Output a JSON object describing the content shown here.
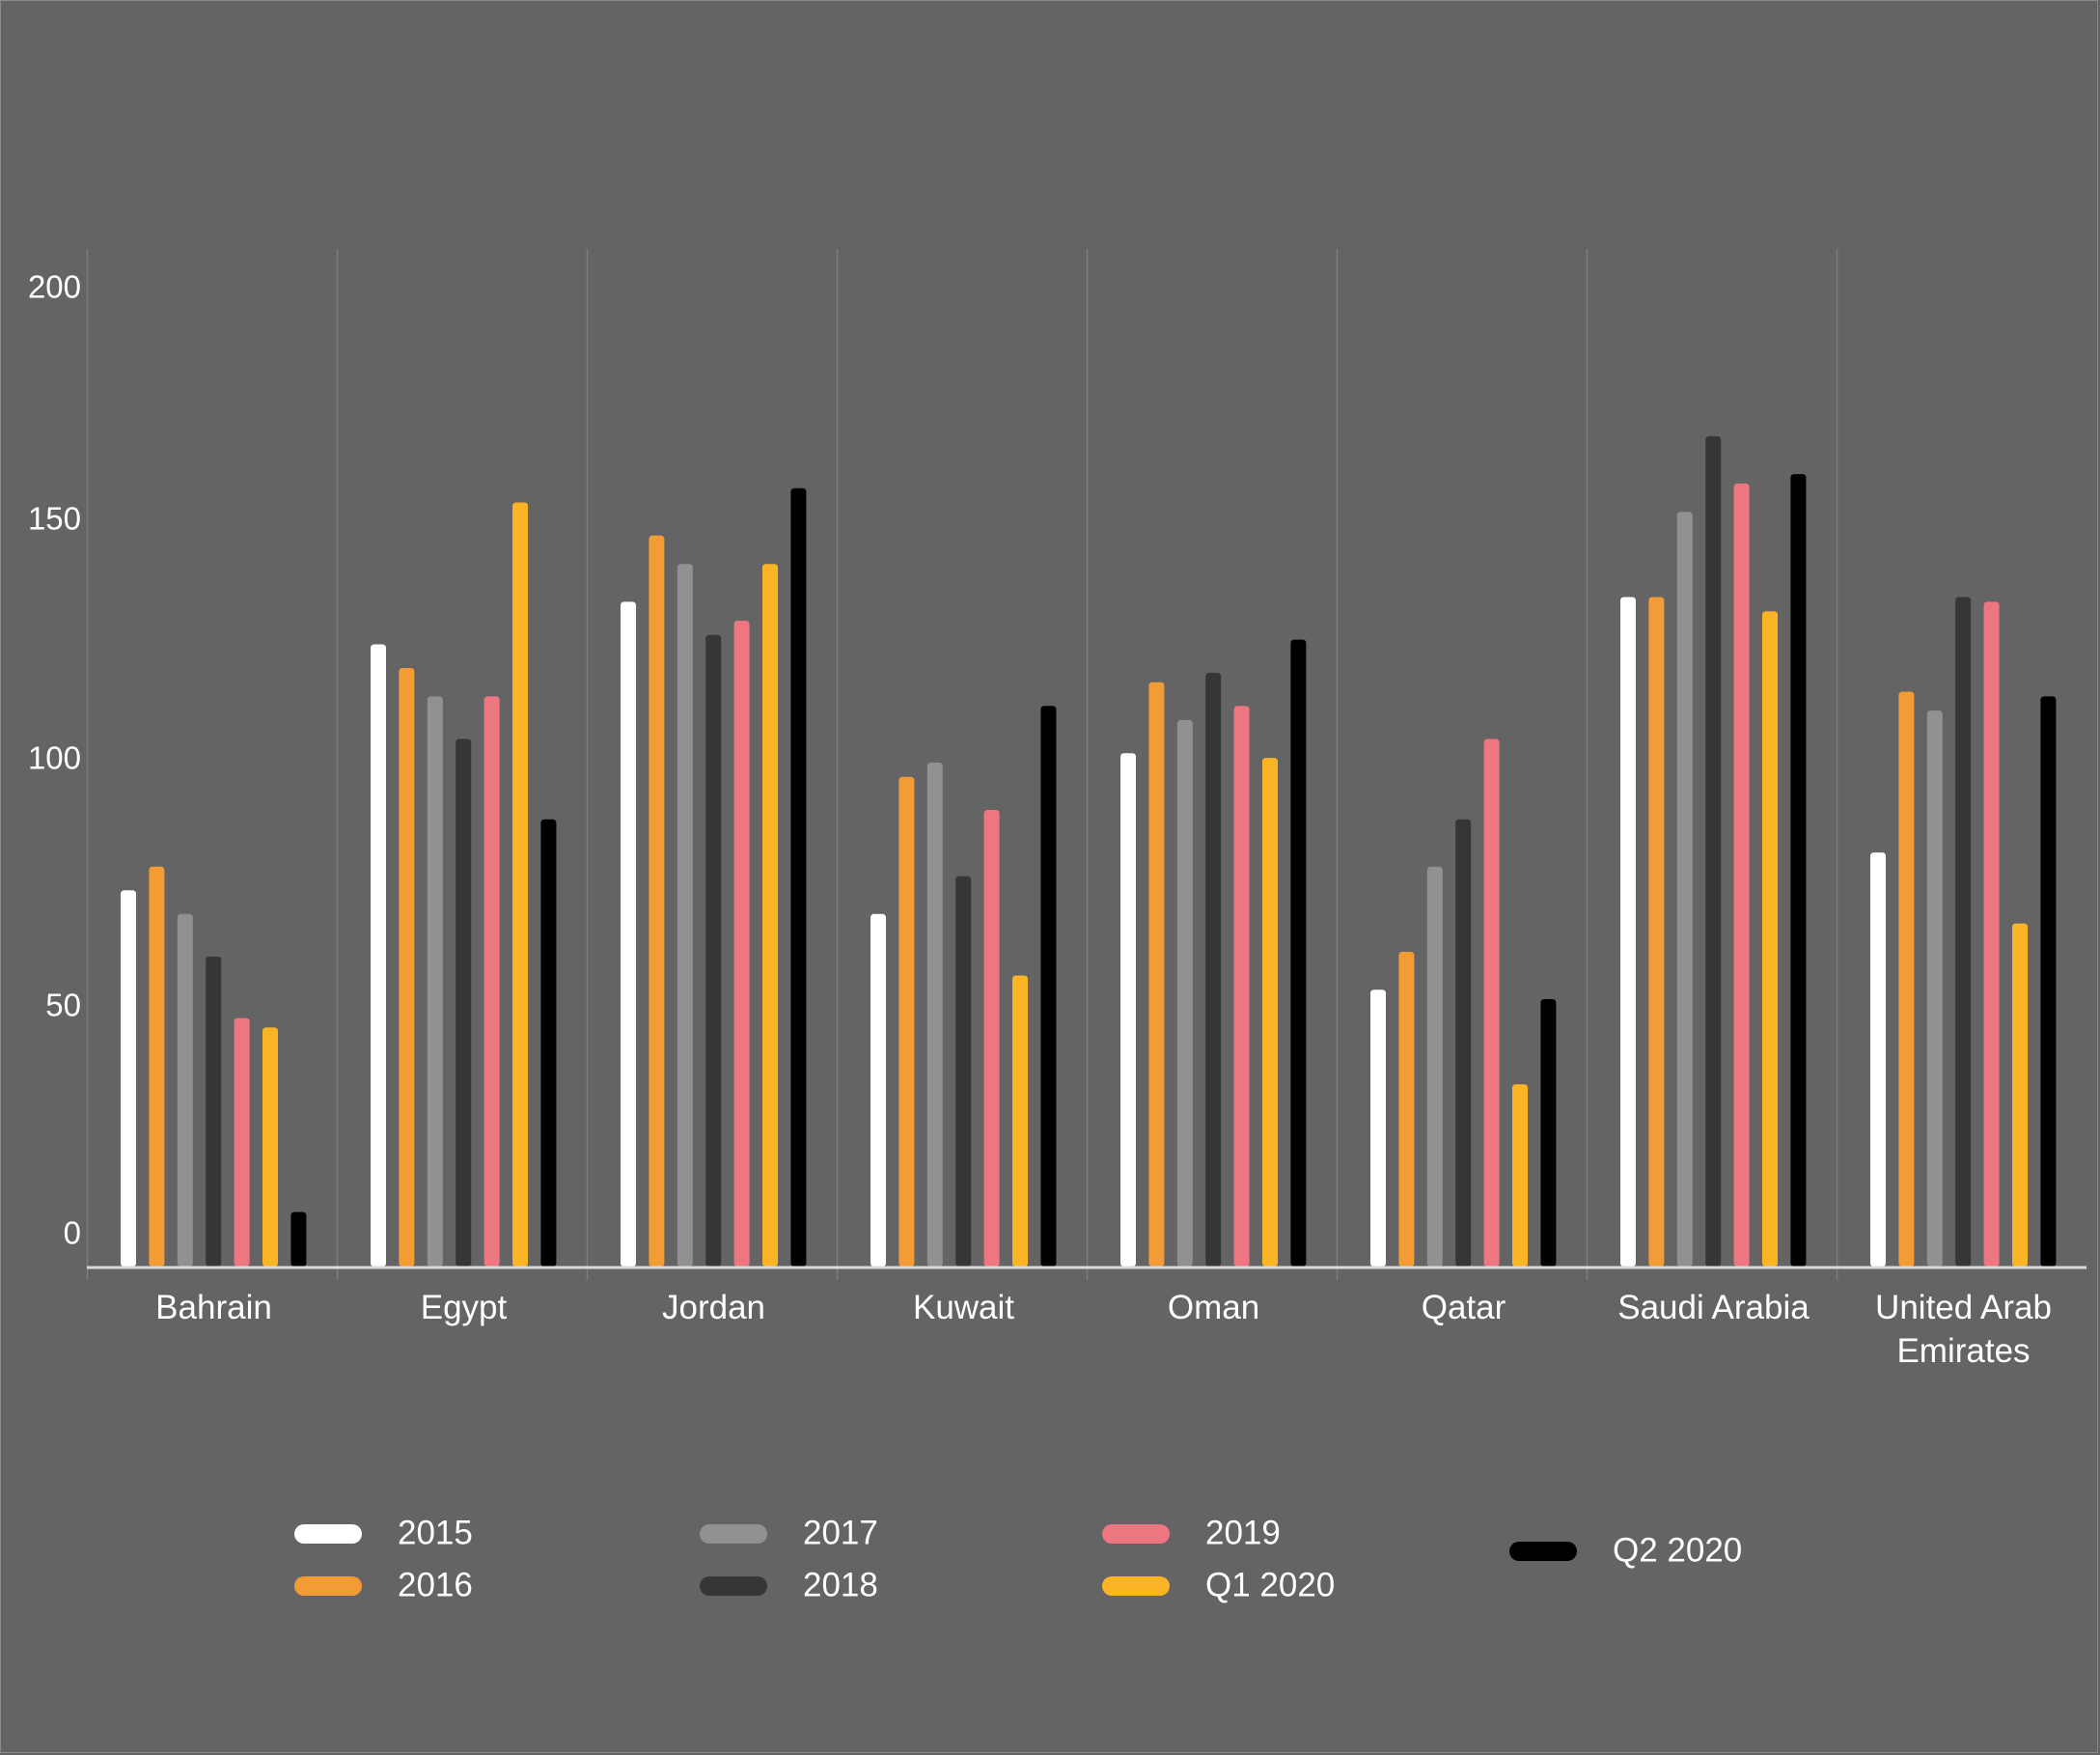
{
  "chart_data": {
    "type": "bar",
    "title": "",
    "xlabel": "",
    "ylabel": "",
    "ylim": [
      0,
      200
    ],
    "yticks": [
      0,
      50,
      100,
      150,
      200
    ],
    "grid": "vertical separators between categories",
    "legend_position": "bottom",
    "categories": [
      "Bahrain",
      "Egypt",
      "Jordan",
      "Kuwait",
      "Oman",
      "Qatar",
      "Saudi Arabia",
      "United Arab Emirates"
    ],
    "category_label_lines": [
      [
        "Bahrain"
      ],
      [
        "Egypt"
      ],
      [
        "Jordan"
      ],
      [
        "Kuwait"
      ],
      [
        "Oman"
      ],
      [
        "Qatar"
      ],
      [
        "Saudi Arabia"
      ],
      [
        "United Arab",
        "Emirates"
      ]
    ],
    "series": [
      {
        "name": "2015",
        "color": "#ffffff",
        "values": [
          73,
          125,
          134,
          68,
          102,
          52,
          135,
          81
        ]
      },
      {
        "name": "2016",
        "color": "#f39c35",
        "values": [
          78,
          120,
          148,
          97,
          117,
          60,
          135,
          115
        ]
      },
      {
        "name": "2017",
        "color": "#919191",
        "values": [
          68,
          114,
          142,
          100,
          109,
          78,
          153,
          111
        ]
      },
      {
        "name": "2018",
        "color": "#363636",
        "values": [
          59,
          105,
          127,
          76,
          119,
          88,
          169,
          135
        ]
      },
      {
        "name": "2019",
        "color": "#ee7681",
        "values": [
          46,
          114,
          130,
          90,
          112,
          105,
          159,
          134
        ]
      },
      {
        "name": "Q1 2020",
        "color": "#fbb424",
        "values": [
          44,
          155,
          142,
          55,
          101,
          32,
          132,
          66
        ]
      },
      {
        "name": "Q2 2020",
        "color": "#000000",
        "values": [
          5,
          88,
          158,
          112,
          126,
          50,
          161,
          114
        ]
      }
    ]
  },
  "colors": {
    "background": "#646464",
    "axis_line": "#d9d9d9",
    "gridline": "#7d7d7d"
  }
}
